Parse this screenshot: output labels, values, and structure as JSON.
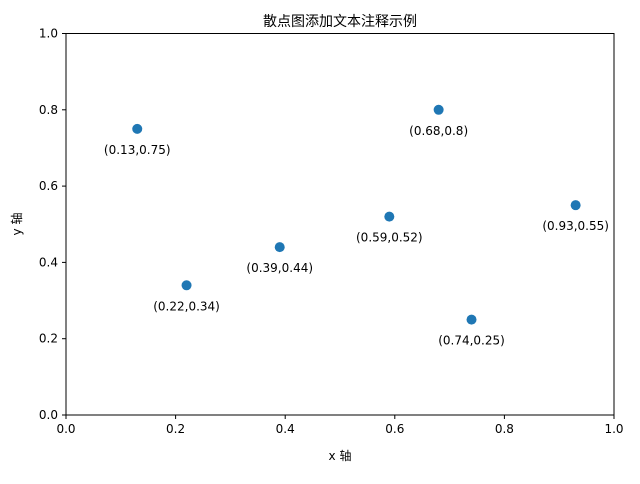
{
  "chart_data": {
    "type": "scatter",
    "title": "散点图添加文本注释示例",
    "xlabel": "x 轴",
    "ylabel": "y 轴",
    "xlim": [
      0.0,
      1.0
    ],
    "ylim": [
      0.0,
      1.0
    ],
    "xticks": [
      0.0,
      0.2,
      0.4,
      0.6,
      0.8,
      1.0
    ],
    "yticks": [
      0.0,
      0.2,
      0.4,
      0.6,
      0.8,
      1.0
    ],
    "tick_format": "0.0",
    "grid": false,
    "legend": "none",
    "marker_color": "#1f77b4",
    "axis_color": "#000000",
    "background_color": "#ffffff",
    "points": [
      {
        "x": 0.13,
        "y": 0.75,
        "label": "(0.13,0.75)"
      },
      {
        "x": 0.22,
        "y": 0.34,
        "label": "(0.22,0.34)"
      },
      {
        "x": 0.39,
        "y": 0.44,
        "label": "(0.39,0.44)"
      },
      {
        "x": 0.59,
        "y": 0.52,
        "label": "(0.59,0.52)"
      },
      {
        "x": 0.68,
        "y": 0.8,
        "label": "(0.68,0.8)"
      },
      {
        "x": 0.74,
        "y": 0.25,
        "label": "(0.74,0.25)"
      },
      {
        "x": 0.93,
        "y": 0.55,
        "label": "(0.93,0.55)"
      }
    ]
  }
}
